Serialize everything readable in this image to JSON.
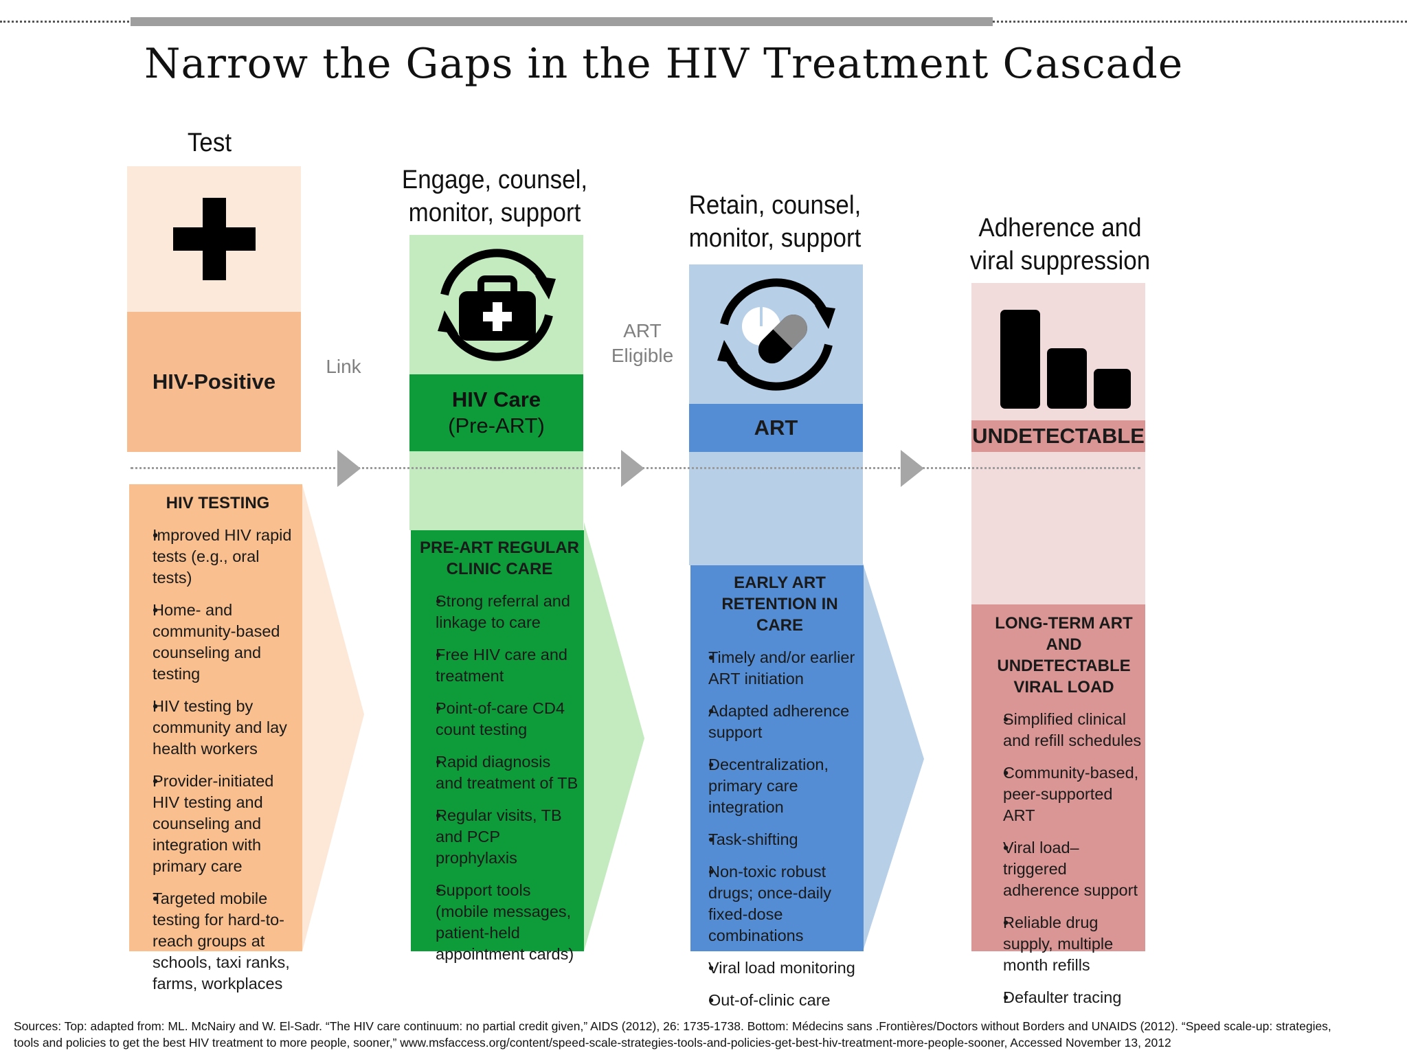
{
  "slide": {
    "title": "Narrow the Gaps in the HIV Treatment Cascade"
  },
  "colors": {
    "test_light": "#fde9d9",
    "test_mid": "#f7bc8f",
    "test_chevron": "#fde8d8",
    "care_light": "#c3ebbf",
    "care_dark": "#0e9b3a",
    "art_light": "#b8cfe8",
    "art_dark": "#548dd4",
    "supp_light": "#f2dcdb",
    "supp_dark": "#da9694",
    "connector": "#a6a6a6"
  },
  "stages": {
    "test": {
      "header": "Test",
      "icon": "plus-icon",
      "label": "HIV-Positive",
      "detail_title": "HIV TESTING",
      "bullets": [
        "Improved HIV rapid tests (e.g., oral tests)",
        "Home- and community-based counseling and testing",
        "HIV testing by community and lay health workers",
        "Provider-initiated HIV testing and counseling and integration with primary care",
        "Targeted mobile testing for hard-to-reach groups at schools, taxi ranks, farms, workplaces"
      ]
    },
    "care": {
      "header": "Engage, counsel, monitor, support",
      "icon": "medical-bag-cycle-icon",
      "label": "HIV Care",
      "sublabel": "(Pre-ART)",
      "detail_title": "PRE-ART REGULAR CLINIC CARE",
      "bullets": [
        "Strong referral and linkage to care",
        "Free HIV care and treatment",
        "Point-of-care CD4 count testing",
        "Rapid diagnosis and treatment of TB",
        "Regular visits, TB  and PCP prophylaxis",
        "Support tools (mobile messages, patient-held appointment cards)"
      ]
    },
    "art": {
      "header": "Retain, counsel, monitor, support",
      "icon": "pill-cycle-icon",
      "label": "ART",
      "detail_title": "EARLY ART RETENTION IN CARE",
      "bullets": [
        "Timely and/or earlier ART initiation",
        "Adapted adherence support",
        "Decentralization, primary care integration",
        "Task-shifting",
        "Non-toxic robust drugs; once-daily fixed-dose combinations",
        "Viral load monitoring",
        "Out-of-clinic care"
      ]
    },
    "suppression": {
      "header": "Adherence and viral suppression",
      "icon": "declining-bars-icon",
      "label": "UNDETECTABLE",
      "detail_title": "LONG-TERM ART AND UNDETECTABLE VIRAL LOAD",
      "bullets": [
        "Simplified clinical and refill schedules",
        "Community-based, peer-supported ART",
        "Viral load–triggered adherence support",
        "Reliable drug supply, multiple month refills",
        "Defaulter tracing"
      ]
    }
  },
  "connectors": {
    "link": "Link",
    "art_eligible": "ART Eligible"
  },
  "sources": {
    "line1": "Sources: Top: adapted from:  ML. McNairy and W. El-Sadr. “The HIV care continuum: no partial credit given,” AIDS (2012), 26: 1735-1738. Bottom: Médecins sans .Frontières/Doctors without Borders and UNAIDS (2012). “Speed scale-up: strategies,",
    "line2": "tools and policies to get the best HIV treatment to more people, sooner,” www.msfaccess.org/content/speed-scale-strategies-tools-and-policies-get-best-hiv-treatment-more-people-sooner, Accessed November 13, 2012"
  }
}
